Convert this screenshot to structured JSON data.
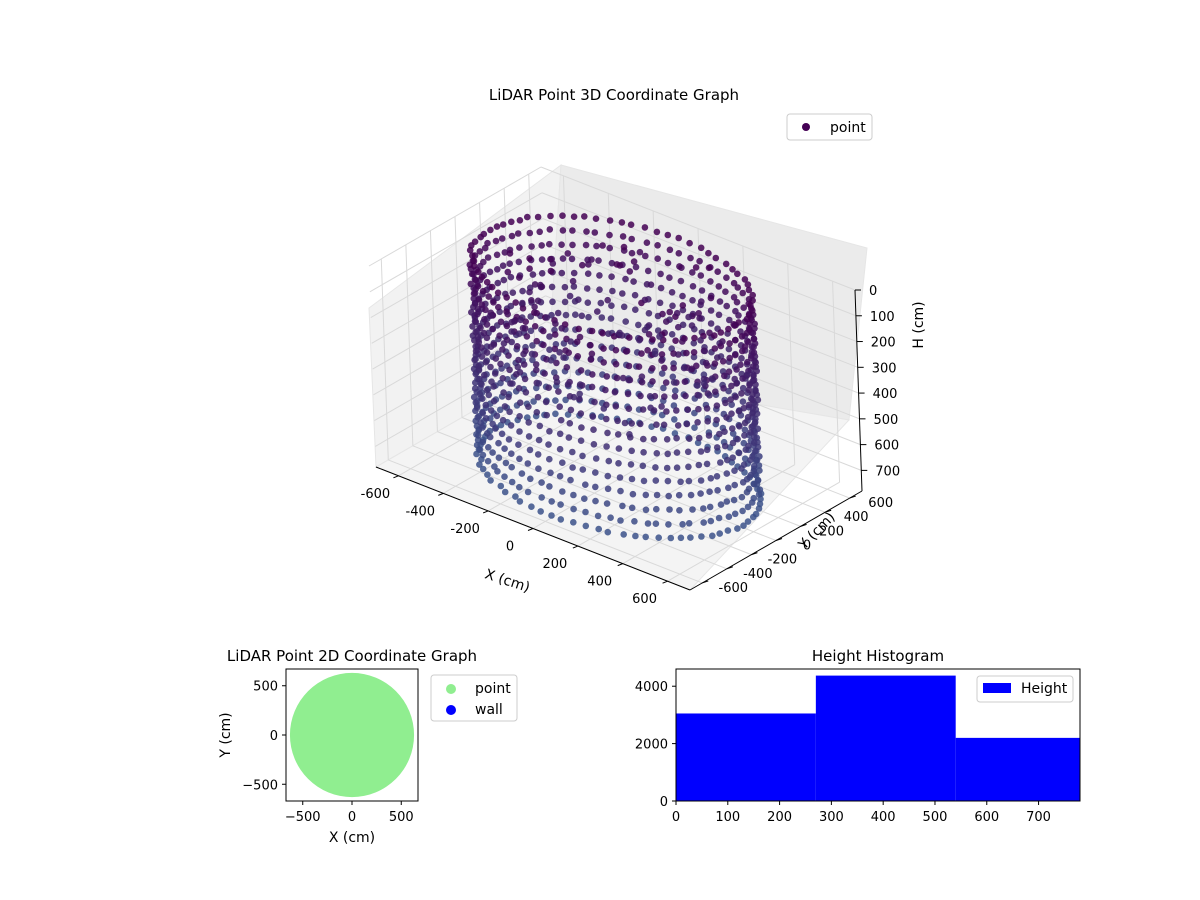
{
  "chart_data": [
    {
      "type": "scatter",
      "projection": "3d",
      "title": "LiDAR Point 3D Coordinate Graph",
      "xlabel": "X (cm)",
      "ylabel": "Y (cm)",
      "zlabel": "H (cm)",
      "xlim": [
        -700,
        700
      ],
      "ylim": [
        -700,
        700
      ],
      "zlim": [
        0,
        780
      ],
      "z_inverted": true,
      "xticks": [
        -600,
        -400,
        -200,
        0,
        200,
        400,
        600
      ],
      "yticks": [
        -600,
        -400,
        -200,
        0,
        200,
        400,
        600
      ],
      "zticks": [
        0,
        100,
        200,
        300,
        400,
        500,
        600,
        700
      ],
      "legend": {
        "entries": [
          "point"
        ],
        "location": "upper right"
      },
      "grid": true,
      "colormap": "viridis (dark purple to blue)",
      "colors": {
        "marker_top": "#440154",
        "marker_bottom": "#3b528b"
      },
      "series": [
        {
          "name": "point",
          "shape": "cylindrical wall of points",
          "center": [
            0,
            0
          ],
          "radius": 550,
          "height_range": [
            0,
            780
          ]
        }
      ]
    },
    {
      "type": "scatter",
      "title": "LiDAR Point 2D Coordinate Graph",
      "xlabel": "X (cm)",
      "ylabel": "Y (cm)",
      "xlim": [
        -670,
        670
      ],
      "ylim": [
        -670,
        670
      ],
      "xticks": [
        -500,
        0,
        500
      ],
      "yticks": [
        -500,
        0,
        500
      ],
      "legend": {
        "entries": [
          "point",
          "wall"
        ],
        "location": "outside right"
      },
      "series": [
        {
          "name": "point",
          "color": "#90ee90",
          "shape": "filled disc",
          "center": [
            0,
            0
          ],
          "radius": 630
        },
        {
          "name": "wall",
          "color": "#0000ff",
          "points": []
        }
      ]
    },
    {
      "type": "bar",
      "title": "Height Histogram",
      "xlim": [
        0,
        780
      ],
      "ylim": [
        0,
        4600
      ],
      "xticks": [
        0,
        100,
        200,
        300,
        400,
        500,
        600,
        700
      ],
      "yticks": [
        0,
        2000,
        4000
      ],
      "legend": {
        "entries": [
          "Height"
        ],
        "location": "upper right"
      },
      "series": [
        {
          "name": "Height",
          "color": "#0000ff"
        }
      ],
      "bins": [
        {
          "from": 0,
          "to": 270,
          "count": 3050
        },
        {
          "from": 270,
          "to": 540,
          "count": 4370
        },
        {
          "from": 540,
          "to": 780,
          "count": 2200
        }
      ]
    }
  ]
}
